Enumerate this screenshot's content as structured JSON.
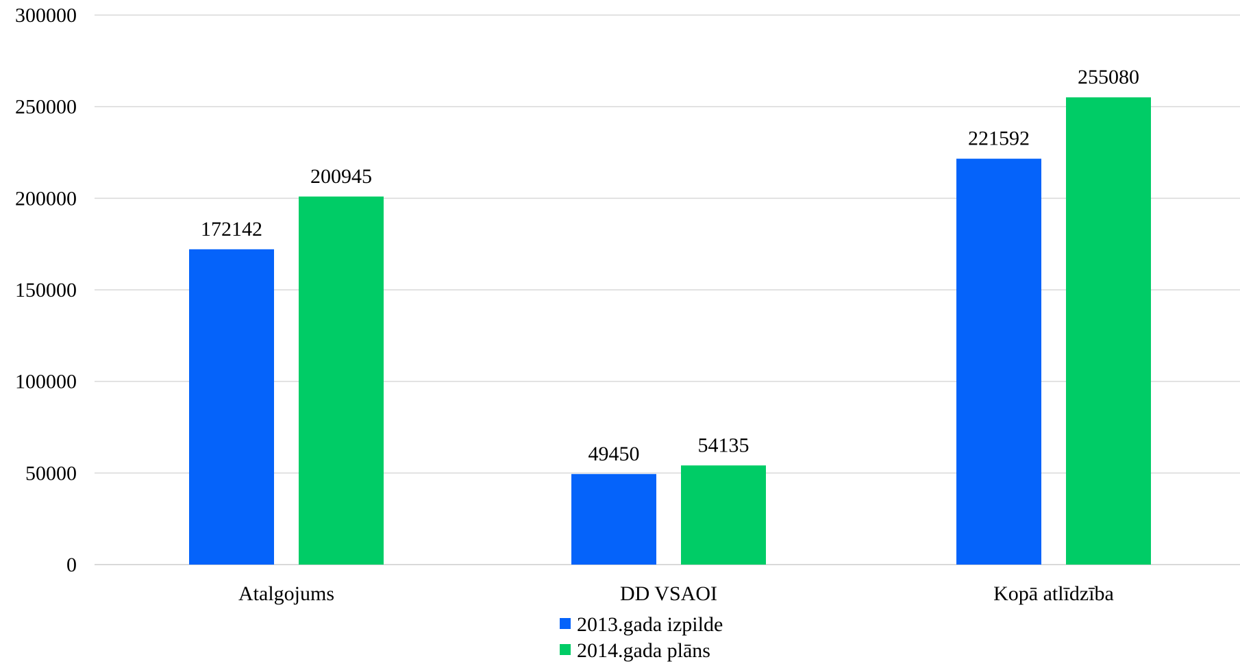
{
  "chart_data": {
    "type": "bar",
    "title": "",
    "xlabel": "",
    "ylabel": "",
    "categories": [
      "Atalgojums",
      "DD VSAOI",
      "Kopā atlīdzība"
    ],
    "series": [
      {
        "name": "2013.gada izpilde",
        "color": "#0563fa",
        "values": [
          172142,
          49450,
          221592
        ],
        "labels": [
          "172142",
          "49450",
          "221592"
        ]
      },
      {
        "name": "2014.gada plāns",
        "color": "#00cc66",
        "values": [
          200945,
          54135,
          255080
        ],
        "labels": [
          "200945",
          "54135",
          "255080"
        ]
      }
    ],
    "ylim": [
      0,
      300000
    ],
    "yticks": [
      0,
      50000,
      100000,
      150000,
      200000,
      250000,
      300000
    ],
    "ytick_labels": [
      "0",
      "50000",
      "100000",
      "150000",
      "200000",
      "250000",
      "300000"
    ],
    "grid": true,
    "legend_position": "bottom"
  }
}
